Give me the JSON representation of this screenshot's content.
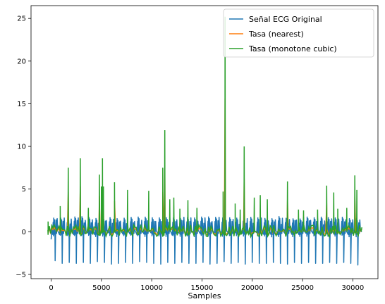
{
  "chart_data": {
    "type": "line",
    "title": "",
    "xlabel": "Samples",
    "ylabel": "",
    "xlim": [
      -2000,
      32500
    ],
    "ylim": [
      -5.5,
      26.5
    ],
    "xticks": [
      0,
      5000,
      10000,
      15000,
      20000,
      25000,
      30000
    ],
    "yticks": [
      -5,
      0,
      5,
      10,
      15,
      20,
      25
    ],
    "grid": false,
    "legend_position": "top-right",
    "series": [
      {
        "name": "Señal ECG Original",
        "color": "#1f77b4",
        "description_values": {
          "x_range": [
            0,
            30900
          ],
          "min": -3.9,
          "max": 2.0,
          "beat_troughs_x": [
            400,
            1100,
            1800,
            2500,
            3200,
            3900,
            4600,
            5300,
            6000,
            6700,
            7400,
            8100,
            8800,
            9500,
            10200,
            10900,
            11600,
            12300,
            13000,
            13700,
            14400,
            15100,
            15800,
            16500,
            17200,
            17900,
            18600,
            19300,
            20000,
            20700,
            21400,
            22100,
            22800,
            23500,
            24200,
            24900,
            25600,
            26300,
            27000,
            27700,
            28400,
            29100,
            29800,
            30500
          ],
          "beat_troughs_y": [
            -3.4,
            -3.7,
            -3.6,
            -3.7,
            -3.6,
            -3.7,
            -3.5,
            -3.6,
            -3.8,
            -3.7,
            -3.6,
            -3.7,
            -3.5,
            -3.6,
            -3.7,
            -3.8,
            -3.6,
            -3.7,
            -3.6,
            -3.7,
            -3.7,
            -3.6,
            -3.8,
            -3.7,
            -3.5,
            -3.7,
            -3.6,
            -3.8,
            -3.6,
            -3.7,
            -3.7,
            -3.6,
            -3.7,
            -3.8,
            -3.6,
            -3.7,
            -3.6,
            -3.7,
            -3.7,
            -3.6,
            -3.7,
            -3.6,
            -3.7,
            -3.9
          ],
          "beat_peaks_y": 1.8
        }
      },
      {
        "name": "Tasa (nearest)",
        "color": "#ff7f0e"
      },
      {
        "name": "Tasa (monotone cubic)",
        "color": "#2ca02c",
        "spikes_x": [
          -300,
          900,
          1700,
          2900,
          3700,
          4800,
          5000,
          5100,
          5200,
          6300,
          7600,
          9700,
          11100,
          11300,
          11800,
          12200,
          12800,
          13600,
          14500,
          17100,
          17300,
          18300,
          18800,
          19200,
          20200,
          20800,
          21500,
          23500,
          24600,
          25100,
          26500,
          27400,
          28100,
          28500,
          29400,
          30200,
          30400,
          30800
        ],
        "spikes_y": [
          1.2,
          3.0,
          7.5,
          8.6,
          2.8,
          6.7,
          5.3,
          8.6,
          5.3,
          5.8,
          4.9,
          4.8,
          7.5,
          11.9,
          3.8,
          4.0,
          2.7,
          3.7,
          2.8,
          4.7,
          25.2,
          3.3,
          2.6,
          10.0,
          4.0,
          4.3,
          3.8,
          5.9,
          2.6,
          2.5,
          2.6,
          5.4,
          4.6,
          2.7,
          2.8,
          6.6,
          4.9,
          0.3
        ]
      }
    ]
  }
}
